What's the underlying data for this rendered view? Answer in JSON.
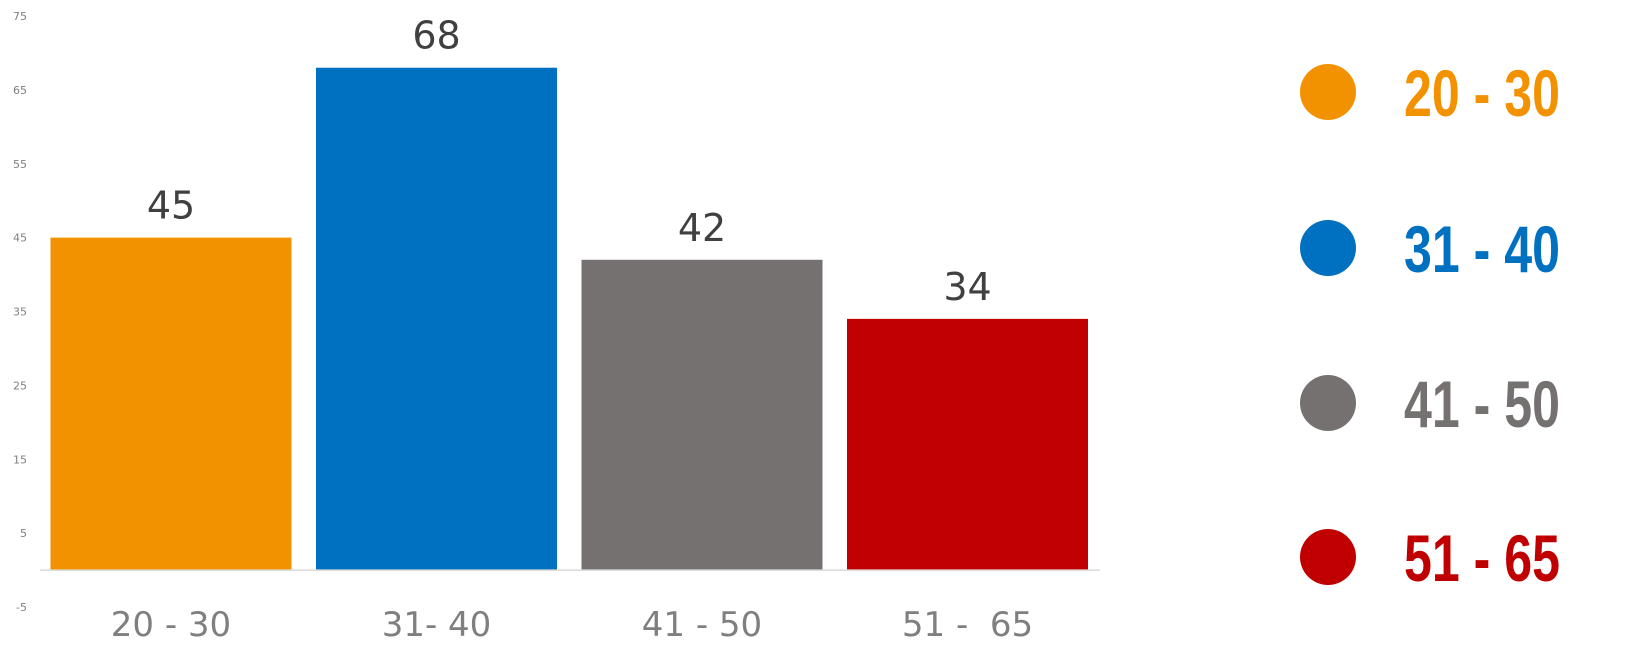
{
  "chart_data": {
    "type": "bar",
    "categories": [
      "20 - 30",
      "31- 40",
      "41 - 50",
      "51 -  65"
    ],
    "values": [
      45,
      68,
      42,
      34
    ],
    "data_labels": [
      "45",
      "68",
      "42",
      "34"
    ],
    "colors": [
      "#f39200",
      "#0070c0",
      "#767171",
      "#c00000"
    ],
    "title": "",
    "xlabel": "",
    "ylabel": "",
    "ylim": [
      -5,
      75
    ],
    "yticks": [
      75,
      65,
      55,
      45,
      35,
      25,
      15,
      5,
      -5
    ],
    "grid": false,
    "legend": {
      "placement": "right",
      "entries": [
        {
          "label": "20 - 30",
          "color": "#f39200",
          "icon": "circle-marker-icon"
        },
        {
          "label": "31 - 40",
          "color": "#0070c0",
          "icon": "circle-marker-icon"
        },
        {
          "label": "41 - 50",
          "color": "#767171",
          "icon": "circle-marker-icon"
        },
        {
          "label": "51 - 65",
          "color": "#c00000",
          "icon": "circle-marker-icon"
        }
      ]
    }
  }
}
